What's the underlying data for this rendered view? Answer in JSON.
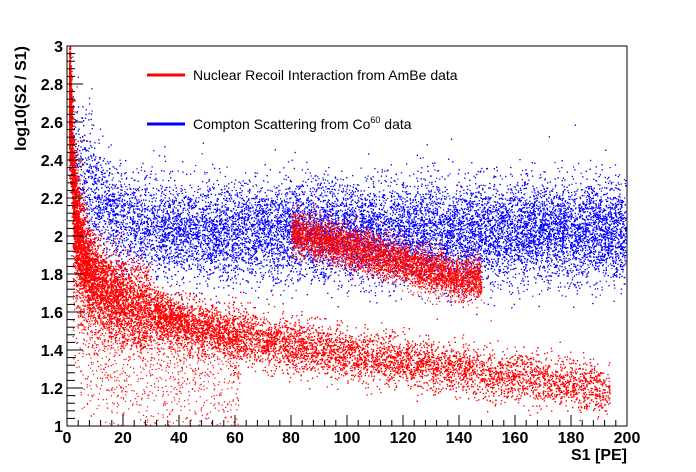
{
  "chart_data": {
    "type": "scatter",
    "xlabel": "S1 [PE]",
    "ylabel": "log10(S2 / S1)",
    "xlim": [
      0,
      200
    ],
    "ylim": [
      1,
      3
    ],
    "x_ticks": [
      0,
      20,
      40,
      60,
      80,
      100,
      120,
      140,
      160,
      180,
      200
    ],
    "y_ticks": [
      1,
      1.2,
      1.4,
      1.6,
      1.8,
      2,
      2.2,
      2.4,
      2.6,
      2.8,
      3
    ],
    "y_tick_labels": [
      "1",
      "1.2",
      "1.4",
      "1.6",
      "1.8",
      "2",
      "2.2",
      "2.4",
      "2.6",
      "2.8",
      "3"
    ],
    "grid": false,
    "legend_position": "top-left",
    "series": [
      {
        "name_main": "Nuclear Recoil Interaction from AmBe data",
        "color": "#ff0000",
        "band_center": [
          [
            1,
            2.72
          ],
          [
            2,
            2.35
          ],
          [
            3,
            2.12
          ],
          [
            5,
            1.95
          ],
          [
            8,
            1.82
          ],
          [
            12,
            1.74
          ],
          [
            20,
            1.66
          ],
          [
            30,
            1.6
          ],
          [
            40,
            1.55
          ],
          [
            60,
            1.48
          ],
          [
            80,
            1.43
          ],
          [
            100,
            1.38
          ],
          [
            120,
            1.34
          ],
          [
            140,
            1.3
          ],
          [
            160,
            1.26
          ],
          [
            180,
            1.22
          ],
          [
            190,
            1.2
          ]
        ],
        "secondary_band": [
          [
            80,
            2.02
          ],
          [
            100,
            1.95
          ],
          [
            120,
            1.86
          ],
          [
            140,
            1.78
          ]
        ]
      },
      {
        "name_main": "Compton Scattering from Co",
        "name_sup": "60",
        "name_tail": " data",
        "color": "#0000ff",
        "band_center": [
          [
            2,
            2.4
          ],
          [
            10,
            2.2
          ],
          [
            20,
            2.08
          ],
          [
            40,
            2.03
          ],
          [
            60,
            2.02
          ],
          [
            80,
            2.03
          ],
          [
            100,
            2.02
          ],
          [
            140,
            2.02
          ],
          [
            180,
            2.03
          ],
          [
            200,
            2.02
          ]
        ]
      }
    ]
  }
}
